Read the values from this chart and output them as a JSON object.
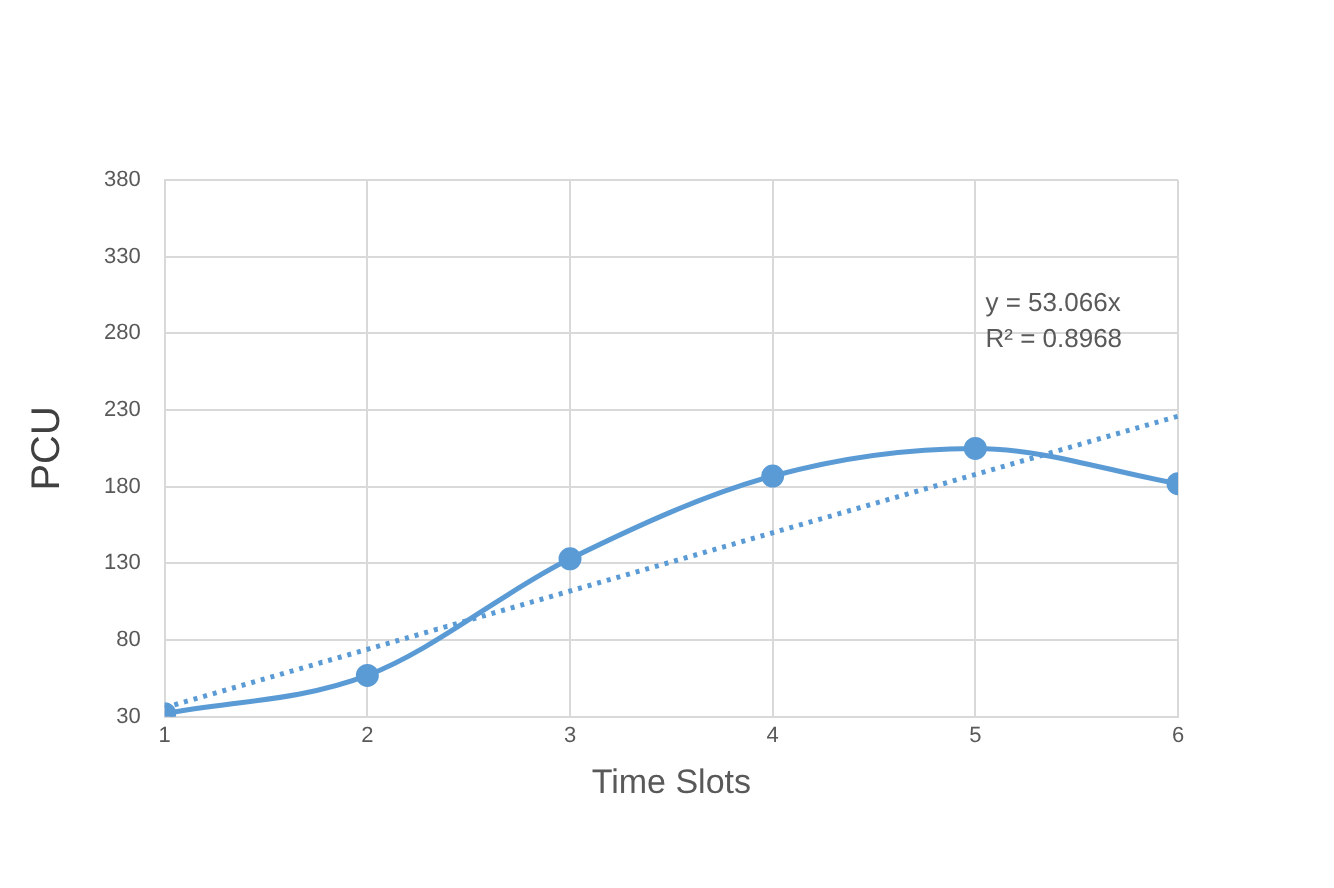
{
  "chart_data": {
    "type": "line",
    "xlabel": "Time Slots",
    "ylabel": "PCU",
    "x": [
      1,
      2,
      3,
      4,
      5,
      6
    ],
    "xlim": [
      1,
      6
    ],
    "xticks": [
      1,
      2,
      3,
      4,
      5,
      6
    ],
    "ylim": [
      30,
      380
    ],
    "yticks": [
      30,
      80,
      130,
      180,
      230,
      280,
      330,
      380
    ],
    "grid": true,
    "legend": false,
    "marker": "circle",
    "series": [
      {
        "color": "#5b9bd5",
        "values": [
          32,
          57,
          133,
          187,
          205,
          182
        ]
      },
      {
        "type": "line",
        "x": [
          1,
          6
        ],
        "color": "#5b9bd5",
        "values": [
          36,
          226
        ],
        "line_style": "dotted",
        "marker": "none"
      }
    ],
    "annotations": [
      "y = 53.066x",
      "R² = 0.8968"
    ]
  }
}
